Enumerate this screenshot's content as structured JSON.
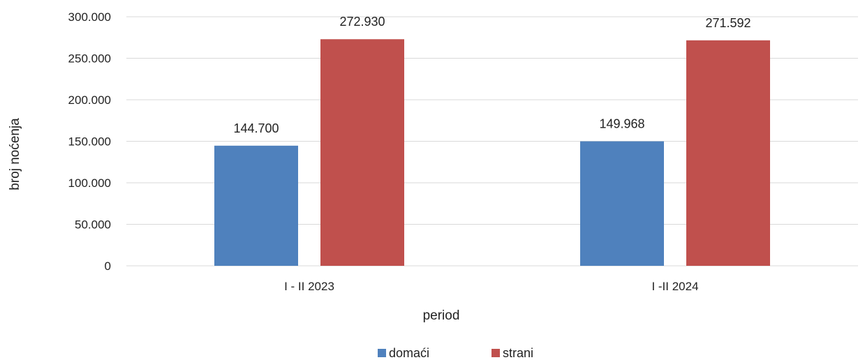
{
  "chart_data": {
    "type": "bar",
    "title": "",
    "xlabel": "period",
    "ylabel": "broj noćenja",
    "categories": [
      "I - II 2023",
      "I -II 2024"
    ],
    "series": [
      {
        "name": "domaći",
        "values": [
          144700,
          149968
        ],
        "value_labels": [
          "144.700",
          "149.968"
        ],
        "color": "#4f81bd"
      },
      {
        "name": "strani",
        "values": [
          272930,
          271592
        ],
        "value_labels": [
          "272.930",
          "271.592"
        ],
        "color": "#c0504d"
      }
    ],
    "ylim": [
      0,
      300000
    ],
    "yticks": [
      0,
      50000,
      100000,
      150000,
      200000,
      250000,
      300000
    ],
    "ytick_labels": [
      "0",
      "50.000",
      "100.000",
      "150.000",
      "200.000",
      "250.000",
      "300.000"
    ],
    "grid": true,
    "legend_position": "bottom"
  }
}
